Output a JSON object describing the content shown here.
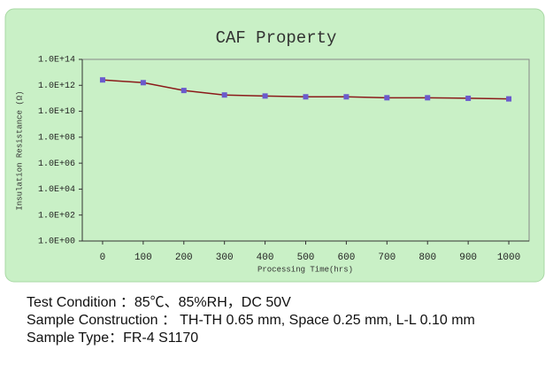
{
  "chart_data": {
    "type": "line",
    "title": "CAF Property",
    "x_label": "Processing Time(hrs)",
    "y_label": "Insulation Resistance (Ω)",
    "yscale": "log",
    "x": [
      0,
      100,
      200,
      300,
      400,
      500,
      600,
      700,
      800,
      900,
      1000
    ],
    "series": [
      {
        "color": "#8b1a1a",
        "marker_color": "#6a5acd",
        "values": [
          2600000000000.0,
          1600000000000.0,
          400000000000.0,
          180000000000.0,
          150000000000.0,
          130000000000.0,
          130000000000.0,
          110000000000.0,
          110000000000.0,
          100000000000.0,
          90000000000.0
        ]
      }
    ],
    "xlim": [
      -50,
      1050
    ],
    "xticks": [
      0,
      100,
      200,
      300,
      400,
      500,
      600,
      700,
      800,
      900,
      1000
    ],
    "ylim": [
      1,
      100000000000000.0
    ],
    "yticks": [
      {
        "value": 1,
        "label": "1.0E+00"
      },
      {
        "value": 100,
        "label": "1.0E+02"
      },
      {
        "value": 10000,
        "label": "1.0E+04"
      },
      {
        "value": 1000000,
        "label": "1.0E+06"
      },
      {
        "value": 100000000,
        "label": "1.0E+08"
      },
      {
        "value": 10000000000,
        "label": "1.0E+10"
      },
      {
        "value": 1000000000000,
        "label": "1.0E+12"
      },
      {
        "value": 100000000000000,
        "label": "1.0E+14"
      }
    ]
  },
  "caption": {
    "lines": [
      "Test Condition ：85℃、85%RH，DC 50V",
      "Sample Construction ： TH-TH 0.65 mm, Space 0.25 mm, L-L 0.10 mm",
      "Sample Type：FR-4 S1170"
    ]
  }
}
